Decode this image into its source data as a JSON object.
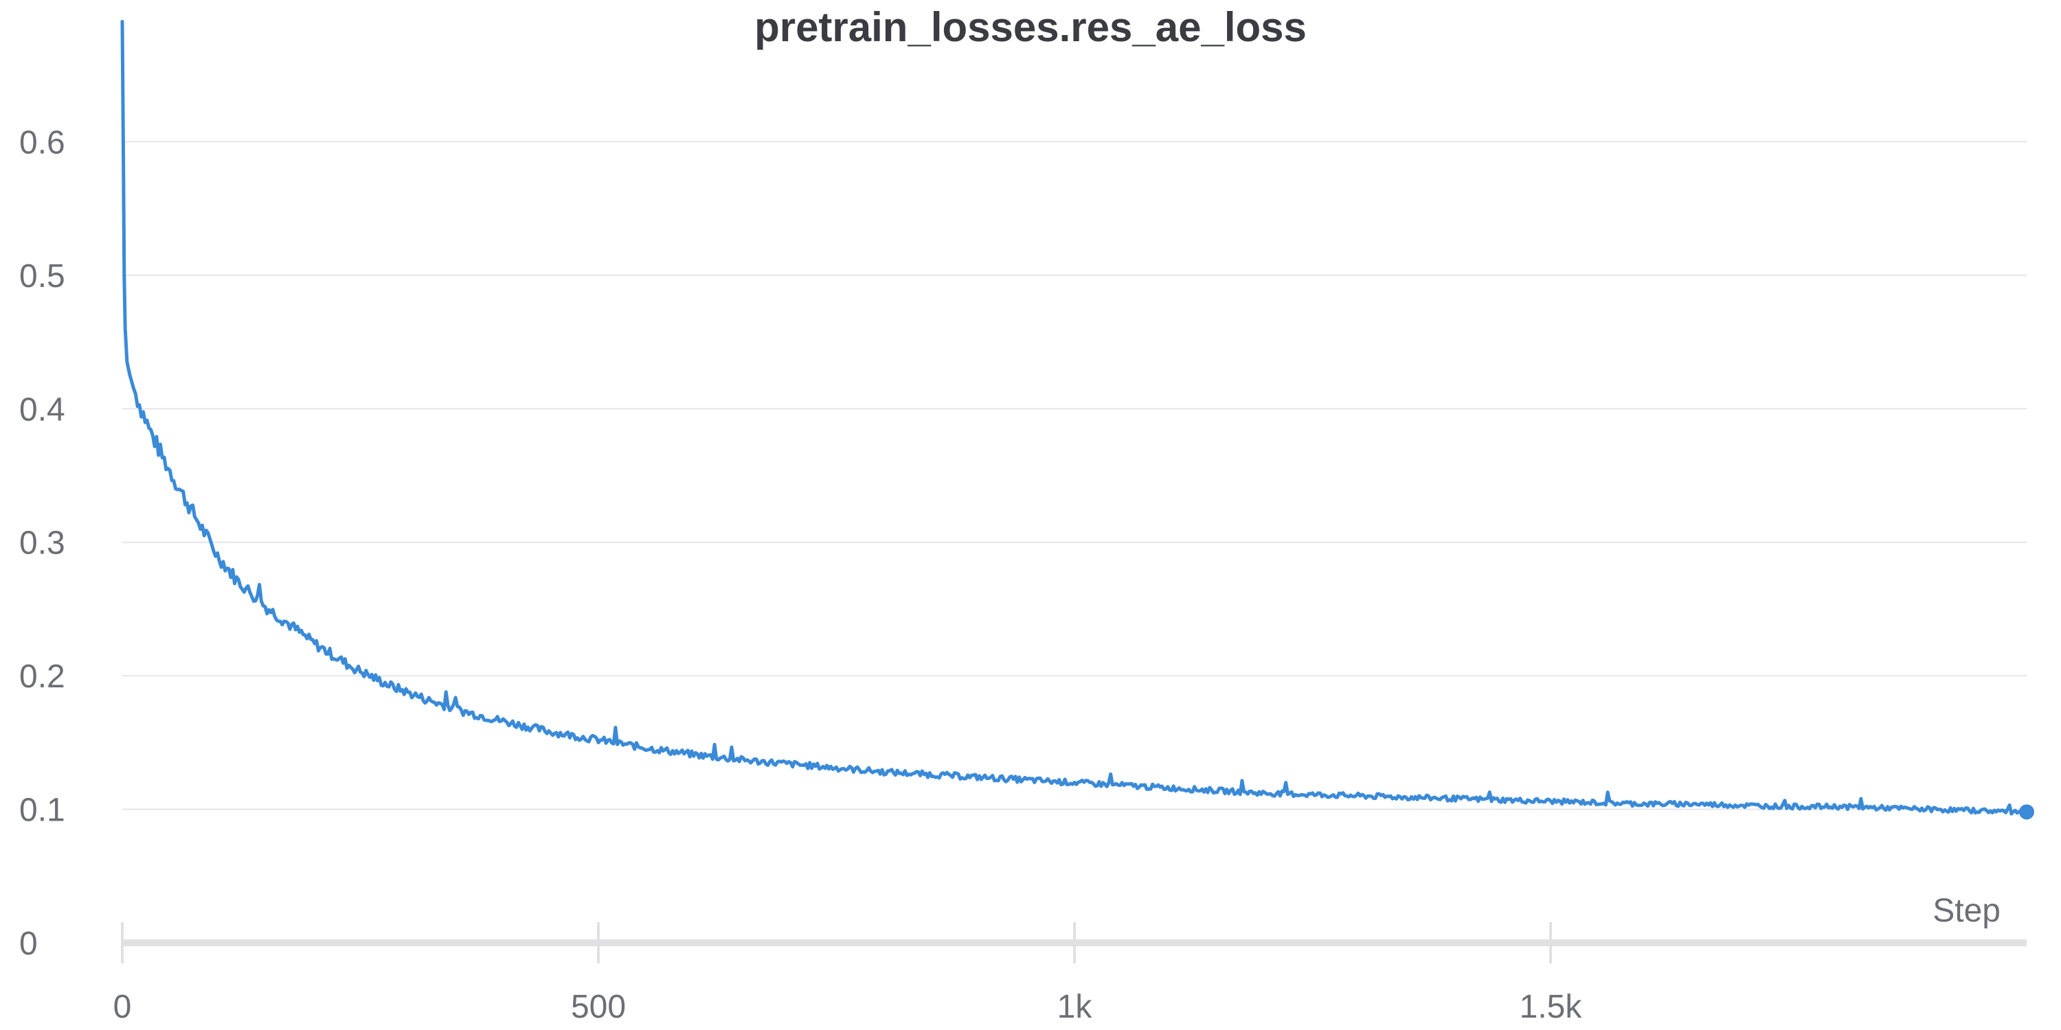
{
  "title": "pretrain_losses.res_ae_loss",
  "colors": {
    "series": "#3a8ad8",
    "grid": "#e6e6e9",
    "axis": "#e1e1e3",
    "text": "#6c6e75",
    "title": "#3a3c42"
  },
  "chart_data": {
    "type": "line",
    "title": "pretrain_losses.res_ae_loss",
    "xlabel": "Step",
    "ylabel": "",
    "xlim": [
      0,
      2000
    ],
    "ylim": [
      0,
      0.7
    ],
    "grid": true,
    "legend": "none",
    "x_ticks": [
      {
        "value": 0,
        "label": "0"
      },
      {
        "value": 500,
        "label": "500"
      },
      {
        "value": 1000,
        "label": "1k"
      },
      {
        "value": 1500,
        "label": "1.5k"
      }
    ],
    "y_ticks": [
      {
        "value": 0,
        "label": "0"
      },
      {
        "value": 0.1,
        "label": "0.1"
      },
      {
        "value": 0.2,
        "label": "0.2"
      },
      {
        "value": 0.3,
        "label": "0.3"
      },
      {
        "value": 0.4,
        "label": "0.4"
      },
      {
        "value": 0.5,
        "label": "0.5"
      },
      {
        "value": 0.6,
        "label": "0.6"
      }
    ],
    "series": [
      {
        "color": "#3a8ad8",
        "end_marker": true,
        "x": [
          0,
          1,
          2,
          3,
          5,
          8,
          12,
          20,
          30,
          45,
          60,
          80,
          100,
          120,
          150,
          180,
          200,
          240,
          280,
          320,
          360,
          400,
          450,
          500,
          550,
          600,
          650,
          700,
          750,
          800,
          850,
          900,
          950,
          1000,
          1050,
          1100,
          1150,
          1200,
          1250,
          1300,
          1350,
          1400,
          1450,
          1500,
          1550,
          1600,
          1650,
          1700,
          1750,
          1800,
          1850,
          1900,
          1950,
          2000
        ],
        "y": [
          0.69,
          0.6,
          0.5,
          0.46,
          0.435,
          0.425,
          0.415,
          0.4,
          0.382,
          0.36,
          0.34,
          0.315,
          0.29,
          0.272,
          0.252,
          0.236,
          0.225,
          0.207,
          0.193,
          0.182,
          0.173,
          0.166,
          0.158,
          0.152,
          0.146,
          0.141,
          0.137,
          0.134,
          0.131,
          0.128,
          0.126,
          0.124,
          0.122,
          0.12,
          0.118,
          0.116,
          0.114,
          0.112,
          0.111,
          0.11,
          0.109,
          0.108,
          0.107,
          0.106,
          0.105,
          0.104,
          0.104,
          0.103,
          0.102,
          0.102,
          0.101,
          0.1,
          0.099,
          0.098
        ]
      }
    ]
  }
}
